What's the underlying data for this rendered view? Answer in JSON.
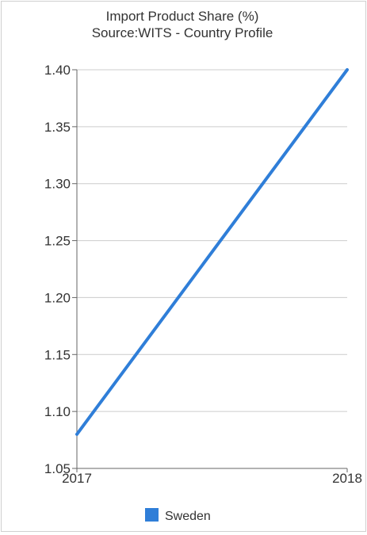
{
  "chart_data": {
    "type": "line",
    "title": "Import Product Share (%)",
    "subtitle": "Source:WITS - Country Profile",
    "xlabel": "",
    "ylabel": "",
    "x": [
      "2017",
      "2018"
    ],
    "series": [
      {
        "name": "Sweden",
        "values": [
          1.08,
          1.4
        ]
      }
    ],
    "ylim": [
      1.05,
      1.4
    ],
    "yticks": [
      "1.05",
      "1.10",
      "1.15",
      "1.20",
      "1.25",
      "1.30",
      "1.35",
      "1.40"
    ],
    "grid": true,
    "legend": "bottom-center",
    "colors": {
      "series": "#2f7ed8",
      "grid": "#cccccc",
      "axis": "#666666"
    }
  }
}
